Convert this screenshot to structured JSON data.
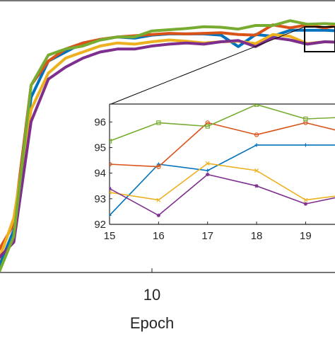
{
  "chart_data": [
    {
      "id": "main",
      "type": "line",
      "title": "",
      "xlabel": "Epoch",
      "ylabel": "",
      "xlim": [
        1.2,
        20.6
      ],
      "ylim": [
        55,
        100
      ],
      "xticks": [
        10
      ],
      "xtick_labels": [
        "10"
      ],
      "grid": false,
      "legend": "none",
      "zoom_box": {
        "x": [
          18.8,
          20.6
        ],
        "y": [
          92,
          97
        ]
      },
      "series": [
        {
          "color": "#0072BD",
          "x": [
            1,
            2,
            3,
            4,
            5,
            6,
            7,
            8,
            9,
            10,
            11,
            12,
            13,
            14,
            15,
            16,
            17,
            18,
            19,
            20,
            21
          ],
          "y": [
            55,
            62,
            84,
            90,
            91.5,
            93,
            93.5,
            94,
            93.8,
            94.3,
            94.5,
            94.5,
            94.5,
            94.3,
            92.4,
            94.4,
            94.1,
            95.1,
            95.1,
            95.1,
            95.0
          ]
        },
        {
          "color": "#D95319",
          "x": [
            1,
            2,
            3,
            4,
            5,
            6,
            7,
            8,
            9,
            10,
            11,
            12,
            13,
            14,
            15,
            16,
            17,
            18,
            19,
            20,
            21
          ],
          "y": [
            58,
            63,
            86,
            90,
            92,
            93,
            93.6,
            94,
            94.2,
            94.4,
            94.6,
            94.5,
            94.6,
            94.7,
            94.4,
            94.3,
            96.0,
            95.5,
            96.0,
            95.5,
            96.0
          ]
        },
        {
          "color": "#EDB120",
          "x": [
            1,
            2,
            3,
            4,
            5,
            6,
            7,
            8,
            9,
            10,
            11,
            12,
            13,
            14,
            15,
            16,
            17,
            18,
            19,
            20,
            21
          ],
          "y": [
            56,
            64,
            82,
            88,
            90.5,
            91.5,
            92.5,
            93,
            92.8,
            93.2,
            93.5,
            93.3,
            93.0,
            93.2,
            93.3,
            92.9,
            94.4,
            94.1,
            92.9,
            93.2,
            93.1
          ]
        },
        {
          "color": "#7E2F8E",
          "x": [
            1,
            2,
            3,
            4,
            5,
            6,
            7,
            8,
            9,
            10,
            11,
            12,
            13,
            14,
            15,
            16,
            17,
            18,
            19,
            20,
            21
          ],
          "y": [
            57,
            60,
            80,
            87,
            89,
            90.5,
            91.5,
            92,
            92,
            92.5,
            92.8,
            93.0,
            92.8,
            93.2,
            93.4,
            92.4,
            93.9,
            93.5,
            92.8,
            93.2,
            93.1
          ]
        },
        {
          "color": "#77AC30",
          "x": [
            1,
            2,
            3,
            4,
            5,
            6,
            7,
            8,
            9,
            10,
            11,
            12,
            13,
            14,
            15,
            16,
            17,
            18,
            19,
            20,
            21
          ],
          "y": [
            54,
            61,
            86,
            91,
            92,
            92.5,
            93.5,
            94,
            94,
            95,
            95.2,
            95.4,
            95.7,
            95.6,
            95.3,
            95.9,
            95.9,
            96.7,
            96.1,
            96.2,
            96.1
          ]
        }
      ]
    },
    {
      "id": "inset",
      "type": "line",
      "title": "",
      "xlabel": "",
      "ylabel": "",
      "xlim": [
        15,
        19.6
      ],
      "ylim": [
        92,
        96.7
      ],
      "xticks": [
        15,
        16,
        17,
        18,
        19
      ],
      "xtick_labels": [
        "15",
        "16",
        "17",
        "18",
        "19"
      ],
      "yticks": [
        92,
        93,
        94,
        95,
        96
      ],
      "ytick_labels": [
        "92",
        "93",
        "94",
        "95",
        "96"
      ],
      "grid": false,
      "legend": "none",
      "series": [
        {
          "color": "#0072BD",
          "marker": "plus",
          "x": [
            15,
            16,
            17,
            18,
            19,
            20
          ],
          "y": [
            92.35,
            94.35,
            94.1,
            95.1,
            95.1,
            95.1
          ]
        },
        {
          "color": "#D95319",
          "marker": "circle",
          "x": [
            15,
            16,
            17,
            18,
            19,
            20
          ],
          "y": [
            94.35,
            94.25,
            95.97,
            95.5,
            95.97,
            95.5
          ]
        },
        {
          "color": "#EDB120",
          "marker": "x",
          "x": [
            15,
            16,
            17,
            18,
            19,
            20
          ],
          "y": [
            93.25,
            92.95,
            94.38,
            94.1,
            92.95,
            93.2
          ]
        },
        {
          "color": "#7E2F8E",
          "marker": "star",
          "x": [
            15,
            16,
            17,
            18,
            19,
            20
          ],
          "y": [
            93.4,
            92.35,
            93.95,
            93.5,
            92.8,
            93.2
          ]
        },
        {
          "color": "#77AC30",
          "marker": "square",
          "x": [
            15,
            16,
            17,
            18,
            19,
            20
          ],
          "y": [
            95.25,
            95.97,
            95.83,
            96.68,
            96.12,
            96.2
          ]
        }
      ]
    }
  ]
}
